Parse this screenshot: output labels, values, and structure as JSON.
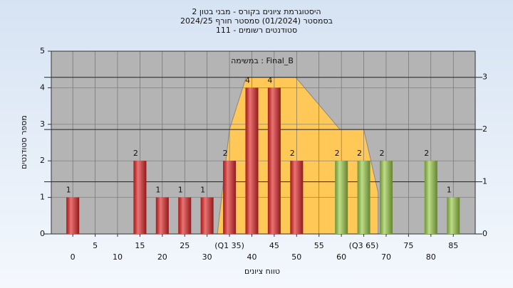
{
  "chart_data": {
    "type": "bar",
    "title": [
      "היסטוגרמת ציונים בקורס - מבני בטון 2",
      "בסמסטר  (01/2024)  סמסטר חורף 2024/25",
      "סטודנטים רשומים - 111"
    ],
    "annotation": "במשימה : Final_B",
    "ylabel": "מספר סטודנטים",
    "xlabel": "טווח ציונים",
    "x": [
      0,
      15,
      20,
      25,
      30,
      35,
      40,
      45,
      50,
      60,
      65,
      70,
      80,
      85
    ],
    "values": [
      1,
      2,
      1,
      1,
      1,
      2,
      4,
      4,
      2,
      2,
      2,
      2,
      2,
      1
    ],
    "colors": [
      "#e02828",
      "#e02828",
      "#e02828",
      "#e02828",
      "#e02828",
      "#e02828",
      "#e02828",
      "#e02828",
      "#e02828",
      "#9acb4a",
      "#9acb4a",
      "#9acb4a",
      "#9acb4a",
      "#9acb4a"
    ],
    "area": {
      "axis": "y2",
      "color": "#ffc857",
      "x": [
        32.3,
        35,
        38.7,
        49.8,
        59.7,
        65,
        68.2
      ],
      "values": [
        0,
        2,
        3,
        3,
        2,
        2,
        0.8
      ]
    },
    "xlim": [
      -4.8,
      89.9
    ],
    "xticks": [
      0,
      5,
      10,
      15,
      20,
      25,
      30,
      {
        "value": 35,
        "label": "(Q1 35)"
      },
      40,
      45,
      50,
      55,
      60,
      {
        "value": 65,
        "label": "(Q3 65)"
      },
      70,
      75,
      80,
      85
    ],
    "ylim": [
      0,
      5
    ],
    "yticks": [
      0,
      1,
      2,
      3,
      4,
      5
    ],
    "y2lim": [
      0,
      3.5
    ],
    "y2ticks": [
      0,
      1,
      2,
      3
    ],
    "grid": true
  }
}
